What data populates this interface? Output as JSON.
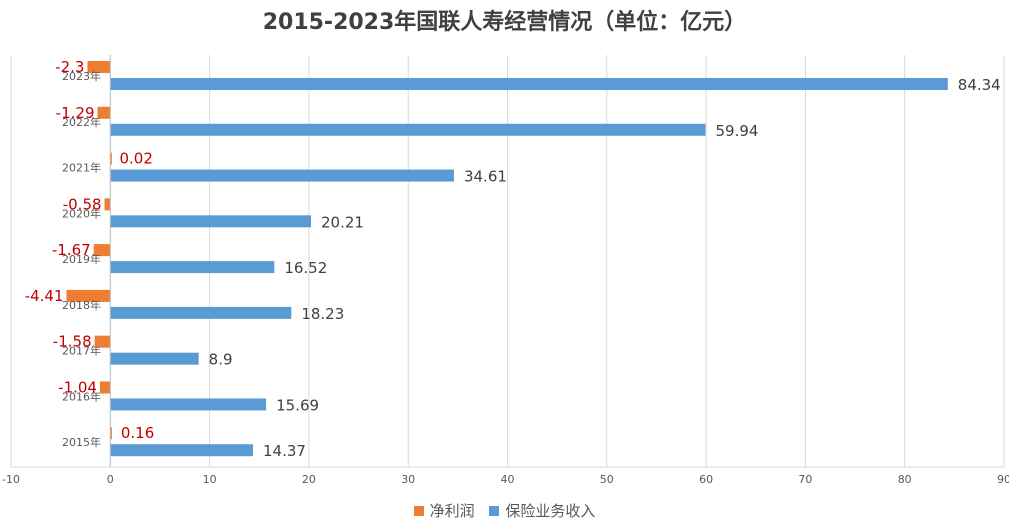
{
  "chart_data": {
    "type": "bar",
    "orientation": "horizontal",
    "title": "2015-2023年国联人寿经营情况（单位：亿元）",
    "categories": [
      "2023年",
      "2022年",
      "2021年",
      "2020年",
      "2019年",
      "2018年",
      "2017年",
      "2016年",
      "2015年"
    ],
    "series": [
      {
        "name": "净利润",
        "color": "#ED7D31",
        "label_color": "#C00000",
        "values": [
          -2.3,
          -1.29,
          0.02,
          -0.58,
          -1.67,
          -4.41,
          -1.58,
          -1.04,
          0.16
        ]
      },
      {
        "name": "保险业务收入",
        "color": "#5B9BD5",
        "label_color": "#404040",
        "values": [
          84.34,
          59.94,
          34.61,
          20.21,
          16.52,
          18.23,
          8.9,
          15.69,
          14.37
        ]
      }
    ],
    "xlim": [
      -10,
      90
    ],
    "x_ticks": [
      "-10",
      "0",
      "10",
      "20",
      "30",
      "40",
      "50",
      "60",
      "70",
      "80",
      "90"
    ],
    "grid": true,
    "legend_position": "bottom"
  }
}
